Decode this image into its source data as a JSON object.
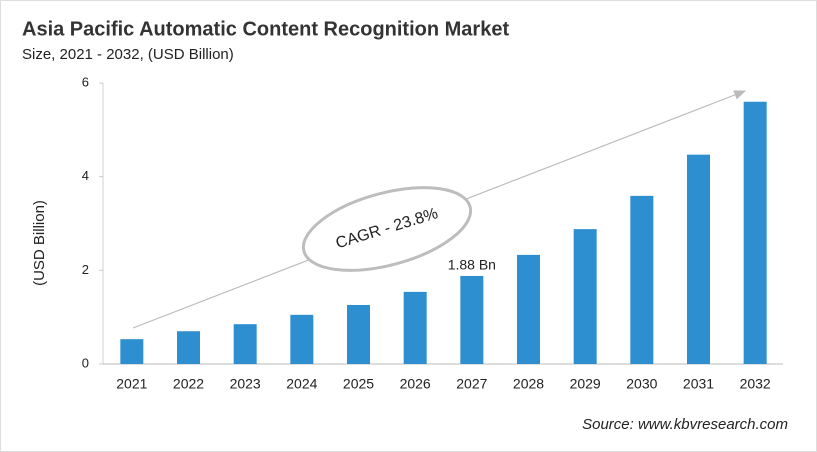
{
  "chart_data": {
    "type": "bar",
    "title": "Asia Pacific Automatic Content Recognition Market",
    "subtitle": "Size, 2021 - 2032, (USD Billion)",
    "y_label": "(USD Billion)",
    "categories": [
      "2021",
      "2022",
      "2023",
      "2024",
      "2025",
      "2026",
      "2027",
      "2028",
      "2029",
      "2030",
      "2031",
      "2032"
    ],
    "values": [
      0.53,
      0.7,
      0.85,
      1.05,
      1.26,
      1.54,
      1.88,
      2.33,
      2.88,
      3.59,
      4.47,
      5.6
    ],
    "value_labels": [
      null,
      null,
      null,
      null,
      null,
      null,
      "1.88 Bn",
      null,
      null,
      null,
      null,
      null
    ],
    "color": "#2e8fd0",
    "ylim": [
      0,
      6
    ],
    "yticks": [
      0,
      2,
      4,
      6
    ],
    "grid": false,
    "annotation": "CAGR - 23.8%",
    "source": "Source: www.kbvresearch.com"
  }
}
